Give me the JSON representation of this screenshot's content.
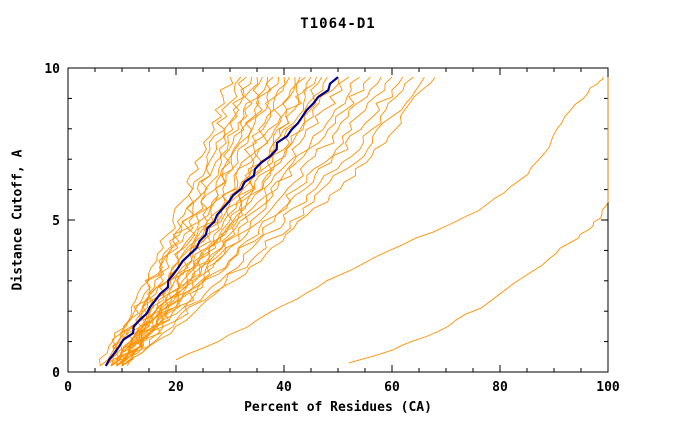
{
  "chart_data": {
    "type": "line",
    "title": "T1064-D1",
    "xlabel": "Percent of Residues (CA)",
    "ylabel": "Distance Cutoff, A",
    "xlim": [
      0,
      100
    ],
    "ylim": [
      0,
      10
    ],
    "x_major_ticks": [
      0,
      20,
      40,
      60,
      80,
      100
    ],
    "y_major_ticks": [
      0,
      5,
      10
    ],
    "x_minor_step": 5,
    "y_minor_step": 1,
    "grid": false,
    "legend": "none",
    "colors": {
      "models": "#ff9100",
      "highlight": "#000090",
      "axis": "#000000",
      "background": "#ffffff"
    },
    "control_y": [
      0.2,
      2.5,
      5.0,
      7.5,
      9.7
    ],
    "bundle_series": [
      [
        6,
        13,
        20,
        26,
        30
      ],
      [
        6,
        14,
        21,
        27,
        32
      ],
      [
        7,
        14,
        22,
        28,
        33
      ],
      [
        7,
        15,
        22,
        29,
        34
      ],
      [
        7,
        15,
        23,
        30,
        35
      ],
      [
        8,
        16,
        24,
        31,
        36
      ],
      [
        8,
        16,
        25,
        32,
        37
      ],
      [
        8,
        17,
        25,
        32,
        38
      ],
      [
        9,
        17,
        26,
        33,
        39
      ],
      [
        9,
        18,
        27,
        34,
        40
      ],
      [
        9,
        18,
        27,
        35,
        41
      ],
      [
        10,
        19,
        28,
        36,
        42
      ],
      [
        10,
        19,
        29,
        37,
        43
      ],
      [
        10,
        20,
        30,
        38,
        44
      ],
      [
        8,
        18,
        28,
        38,
        45
      ],
      [
        9,
        19,
        30,
        39,
        46
      ],
      [
        9,
        20,
        31,
        40,
        47
      ],
      [
        10,
        21,
        32,
        41,
        48
      ],
      [
        8,
        19,
        31,
        42,
        50
      ],
      [
        9,
        21,
        33,
        43,
        52
      ],
      [
        10,
        22,
        34,
        45,
        54
      ],
      [
        8,
        20,
        33,
        46,
        56
      ],
      [
        9,
        22,
        35,
        48,
        58
      ],
      [
        10,
        23,
        37,
        50,
        60
      ],
      [
        9,
        23,
        38,
        52,
        62
      ],
      [
        10,
        25,
        40,
        54,
        64
      ],
      [
        10,
        26,
        42,
        56,
        66
      ],
      [
        11,
        27,
        44,
        58,
        68
      ]
    ],
    "highlight_series": {
      "name": "highlighted-model",
      "x": [
        7,
        17,
        27,
        39,
        50
      ]
    },
    "outlier_series": [
      {
        "points": [
          [
            20,
            0.4
          ],
          [
            28,
            1.0
          ],
          [
            35,
            1.7
          ],
          [
            42,
            2.4
          ],
          [
            48,
            3.0
          ],
          [
            55,
            3.6
          ],
          [
            62,
            4.2
          ],
          [
            70,
            4.8
          ],
          [
            76,
            5.3
          ],
          [
            81,
            5.9
          ],
          [
            85,
            6.5
          ],
          [
            88,
            7.2
          ],
          [
            90,
            7.8
          ],
          [
            92,
            8.4
          ],
          [
            95,
            9.0
          ],
          [
            98,
            9.5
          ],
          [
            99,
            9.7
          ]
        ]
      },
      {
        "points": [
          [
            52,
            0.3
          ],
          [
            58,
            0.6
          ],
          [
            64,
            1.0
          ],
          [
            70,
            1.5
          ],
          [
            76,
            2.1
          ],
          [
            81,
            2.7
          ],
          [
            86,
            3.3
          ],
          [
            90,
            3.9
          ],
          [
            94,
            4.4
          ],
          [
            97,
            4.8
          ],
          [
            99,
            5.2
          ],
          [
            100,
            5.6
          ],
          [
            100,
            9.7
          ]
        ]
      }
    ]
  }
}
